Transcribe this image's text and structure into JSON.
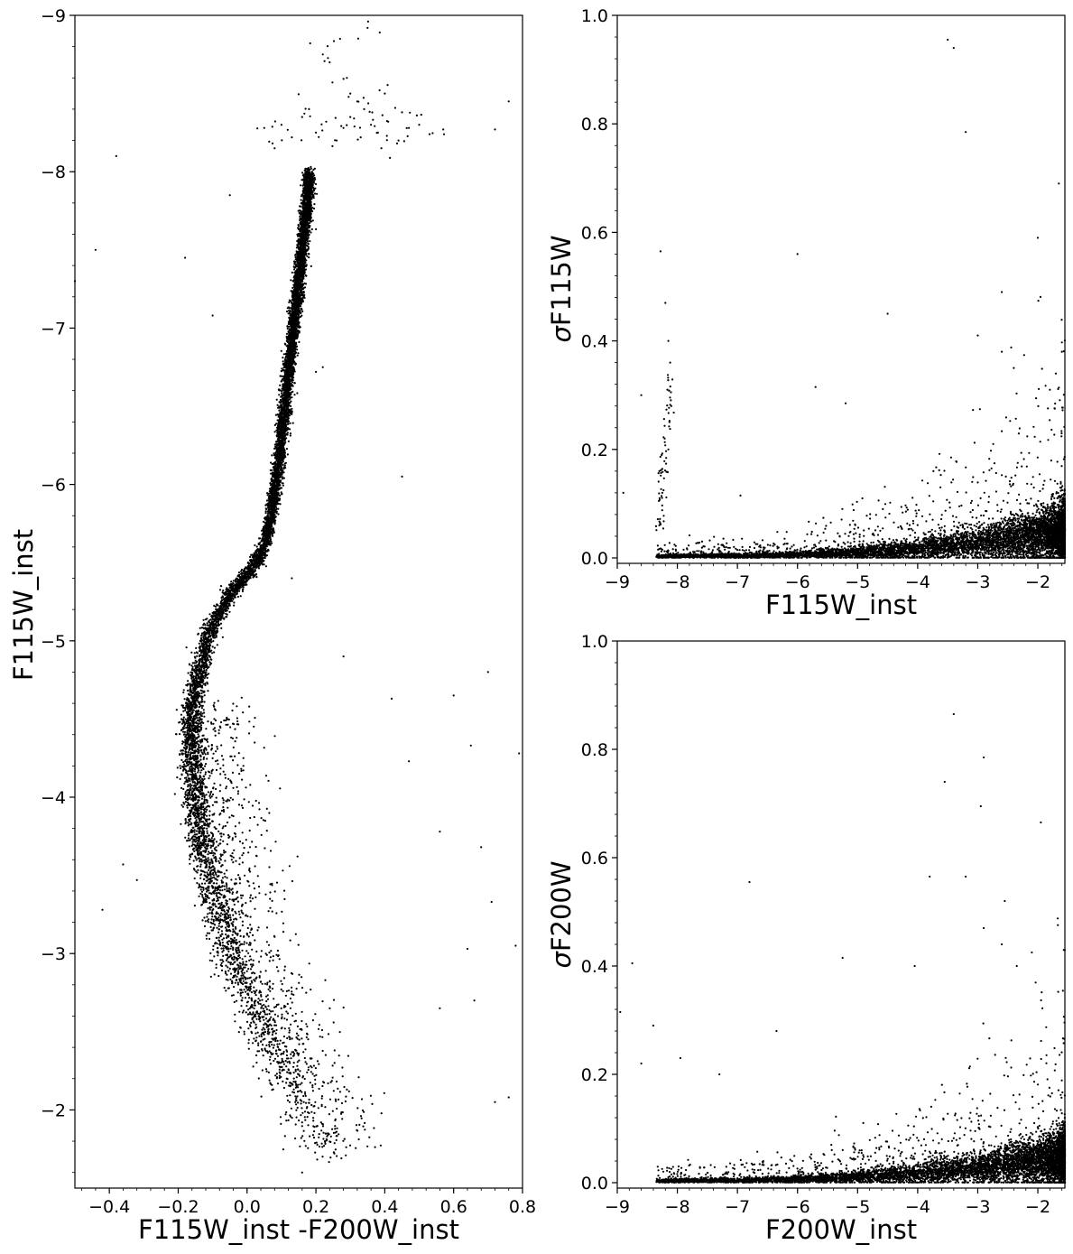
{
  "chart_data": [
    {
      "type": "scatter",
      "panel": "cmd",
      "xlabel": "F115W_inst -F200W_inst",
      "ylabel": "F115W_inst",
      "xlim": [
        -0.5,
        0.8
      ],
      "ylim": [
        -1.5,
        -9.0
      ],
      "y_inverted": true,
      "xticks": [
        -0.4,
        -0.2,
        0.0,
        0.2,
        0.4,
        0.6,
        0.8
      ],
      "xtick_labels": [
        "−0.4",
        "−0.2",
        "0.0",
        "0.2",
        "0.4",
        "0.6",
        "0.8"
      ],
      "yticks": [
        -9,
        -8,
        -7,
        -6,
        -5,
        -4,
        -3,
        -2
      ],
      "ytick_labels": [
        "−9",
        "−8",
        "−7",
        "−6",
        "−5",
        "−4",
        "−3",
        "−2"
      ],
      "grid": false,
      "marker_color": "#000000",
      "ridge_line": [
        [
          0.2,
          -1.72
        ],
        [
          0.17,
          -1.9
        ],
        [
          0.13,
          -2.1
        ],
        [
          0.09,
          -2.3
        ],
        [
          0.05,
          -2.5
        ],
        [
          0.01,
          -2.7
        ],
        [
          -0.03,
          -2.9
        ],
        [
          -0.06,
          -3.1
        ],
        [
          -0.09,
          -3.3
        ],
        [
          -0.11,
          -3.5
        ],
        [
          -0.13,
          -3.7
        ],
        [
          -0.145,
          -3.9
        ],
        [
          -0.155,
          -4.1
        ],
        [
          -0.16,
          -4.3
        ],
        [
          -0.16,
          -4.5
        ],
        [
          -0.15,
          -4.7
        ],
        [
          -0.13,
          -4.9
        ],
        [
          -0.1,
          -5.1
        ],
        [
          -0.05,
          -5.3
        ],
        [
          0.01,
          -5.45
        ],
        [
          0.05,
          -5.6
        ],
        [
          0.07,
          -5.8
        ],
        [
          0.085,
          -6.0
        ],
        [
          0.095,
          -6.2
        ],
        [
          0.105,
          -6.4
        ],
        [
          0.115,
          -6.6
        ],
        [
          0.125,
          -6.8
        ],
        [
          0.135,
          -7.0
        ],
        [
          0.145,
          -7.2
        ],
        [
          0.155,
          -7.4
        ],
        [
          0.165,
          -7.6
        ],
        [
          0.175,
          -7.8
        ],
        [
          0.18,
          -8.0
        ]
      ],
      "clump_points": [
        [
          0.05,
          -8.28
        ],
        [
          0.1,
          -8.3
        ],
        [
          0.13,
          -8.22
        ],
        [
          0.16,
          -8.35
        ],
        [
          0.2,
          -8.25
        ],
        [
          0.23,
          -8.32
        ],
        [
          0.26,
          -8.2
        ],
        [
          0.28,
          -8.28
        ],
        [
          0.3,
          -8.35
        ],
        [
          0.33,
          -8.22
        ],
        [
          0.36,
          -8.3
        ],
        [
          0.38,
          -8.25
        ],
        [
          0.41,
          -8.32
        ],
        [
          0.44,
          -8.2
        ],
        [
          0.47,
          -8.28
        ],
        [
          0.5,
          -8.3
        ],
        [
          0.53,
          -8.24
        ],
        [
          0.08,
          -8.15
        ],
        [
          0.18,
          -8.4
        ],
        [
          0.34,
          -8.4
        ],
        [
          0.39,
          -8.15
        ],
        [
          0.45,
          -8.38
        ],
        [
          0.22,
          -8.75
        ],
        [
          0.24,
          -8.7
        ],
        [
          0.27,
          -8.85
        ],
        [
          0.29,
          -8.6
        ],
        [
          0.35,
          -8.92
        ],
        [
          0.3,
          -8.5
        ],
        [
          0.32,
          -8.45
        ],
        [
          0.4,
          -8.5
        ]
      ],
      "outliers": [
        [
          -0.44,
          -7.5
        ],
        [
          -0.38,
          -8.1
        ],
        [
          -0.18,
          -7.45
        ],
        [
          -0.1,
          -7.08
        ],
        [
          -0.05,
          -7.85
        ],
        [
          0.2,
          -6.72
        ],
        [
          0.22,
          -6.75
        ],
        [
          0.45,
          -6.05
        ],
        [
          0.7,
          -4.8
        ],
        [
          0.6,
          -4.65
        ],
        [
          0.65,
          -4.33
        ],
        [
          0.79,
          -4.28
        ],
        [
          0.42,
          -4.63
        ],
        [
          0.47,
          -4.23
        ],
        [
          0.68,
          -3.68
        ],
        [
          0.71,
          -3.33
        ],
        [
          -0.42,
          -3.28
        ],
        [
          -0.36,
          -3.57
        ],
        [
          -0.32,
          -3.47
        ],
        [
          0.56,
          -3.78
        ],
        [
          0.64,
          -3.03
        ],
        [
          0.66,
          -2.7
        ],
        [
          0.56,
          -2.65
        ],
        [
          0.72,
          -2.05
        ],
        [
          0.76,
          -2.08
        ],
        [
          0.78,
          -3.05
        ],
        [
          0.13,
          -5.4
        ],
        [
          0.28,
          -4.9
        ],
        [
          0.16,
          -1.6
        ],
        [
          0.72,
          -8.27
        ],
        [
          0.76,
          -8.45
        ],
        [
          0.57,
          -8.27
        ],
        [
          -0.5,
          -7.3
        ]
      ]
    },
    {
      "type": "scatter",
      "panel": "sigma-f115w",
      "xlabel": "F115W_inst",
      "ylabel_prefix": "σ",
      "ylabel": "F115W",
      "xlim": [
        -9.0,
        -1.55
      ],
      "ylim": [
        -0.01,
        1.0
      ],
      "xticks": [
        -9,
        -8,
        -7,
        -6,
        -5,
        -4,
        -3,
        -2
      ],
      "xtick_labels": [
        "−9",
        "−8",
        "−7",
        "−6",
        "−5",
        "−4",
        "−3",
        "−2"
      ],
      "yticks": [
        0.0,
        0.2,
        0.4,
        0.6,
        0.8,
        1.0
      ],
      "ytick_labels": [
        "0.0",
        "0.2",
        "0.4",
        "0.6",
        "0.8",
        "1.0"
      ],
      "grid": false,
      "trend": [
        [
          -8.3,
          0.003
        ],
        [
          -7,
          0.004
        ],
        [
          -6,
          0.006
        ],
        [
          -5,
          0.01
        ],
        [
          -4,
          0.017
        ],
        [
          -3,
          0.027
        ],
        [
          -2.5,
          0.034
        ],
        [
          -2,
          0.042
        ],
        [
          -1.6,
          0.05
        ]
      ],
      "branch": [
        [
          -8.1,
          0.28
        ],
        [
          -8.15,
          0.2
        ],
        [
          -8.25,
          0.12
        ],
        [
          -8.3,
          0.06
        ],
        [
          -8.15,
          0.4
        ],
        [
          -8.28,
          0.565
        ],
        [
          -8.2,
          0.47
        ],
        [
          -8.12,
          0.36
        ]
      ],
      "outliers": [
        [
          -3.5,
          0.955
        ],
        [
          -3.4,
          0.94
        ],
        [
          -3.2,
          0.785
        ],
        [
          -1.65,
          0.69
        ],
        [
          -2.0,
          0.59
        ],
        [
          -6.0,
          0.56
        ],
        [
          -4.5,
          0.45
        ],
        [
          -2.6,
          0.49
        ],
        [
          -3.0,
          0.41
        ],
        [
          -2.6,
          0.38
        ],
        [
          -5.7,
          0.315
        ],
        [
          -5.2,
          0.285
        ],
        [
          -1.6,
          0.38
        ],
        [
          -8.6,
          0.3
        ],
        [
          -8.9,
          0.12
        ],
        [
          -6.95,
          0.115
        ],
        [
          -2.4,
          0.35
        ],
        [
          -1.7,
          0.34
        ],
        [
          -1.8,
          0.31
        ]
      ]
    },
    {
      "type": "scatter",
      "panel": "sigma-f200w",
      "xlabel": "F200W_inst",
      "ylabel_prefix": "σ",
      "ylabel": "F200W",
      "xlim": [
        -9.0,
        -1.55
      ],
      "ylim": [
        -0.01,
        1.0
      ],
      "xticks": [
        -9,
        -8,
        -7,
        -6,
        -5,
        -4,
        -3,
        -2
      ],
      "xtick_labels": [
        "−9",
        "−8",
        "−7",
        "−6",
        "−5",
        "−4",
        "−3",
        "−2"
      ],
      "yticks": [
        0.0,
        0.2,
        0.4,
        0.6,
        0.8,
        1.0
      ],
      "ytick_labels": [
        "0.0",
        "0.2",
        "0.4",
        "0.6",
        "0.8",
        "1.0"
      ],
      "grid": false,
      "trend": [
        [
          -9,
          0.003
        ],
        [
          -7,
          0.004
        ],
        [
          -6,
          0.006
        ],
        [
          -5,
          0.01
        ],
        [
          -4,
          0.017
        ],
        [
          -3,
          0.026
        ],
        [
          -2.5,
          0.032
        ],
        [
          -2,
          0.04
        ],
        [
          -1.6,
          0.048
        ]
      ],
      "outliers": [
        [
          -3.4,
          0.865
        ],
        [
          -2.9,
          0.785
        ],
        [
          -2.95,
          0.695
        ],
        [
          -3.55,
          0.74
        ],
        [
          -1.95,
          0.665
        ],
        [
          -6.8,
          0.555
        ],
        [
          -3.8,
          0.565
        ],
        [
          -3.2,
          0.565
        ],
        [
          -2.9,
          0.47
        ],
        [
          -2.55,
          0.52
        ],
        [
          -5.25,
          0.415
        ],
        [
          -4.05,
          0.4
        ],
        [
          -8.75,
          0.405
        ],
        [
          -8.95,
          0.315
        ],
        [
          -8.4,
          0.29
        ],
        [
          -6.35,
          0.28
        ],
        [
          -2.6,
          0.44
        ],
        [
          -2.1,
          0.425
        ],
        [
          -2.35,
          0.4
        ],
        [
          -8.6,
          0.22
        ],
        [
          -7.95,
          0.23
        ],
        [
          -7.3,
          0.2
        ]
      ]
    }
  ]
}
